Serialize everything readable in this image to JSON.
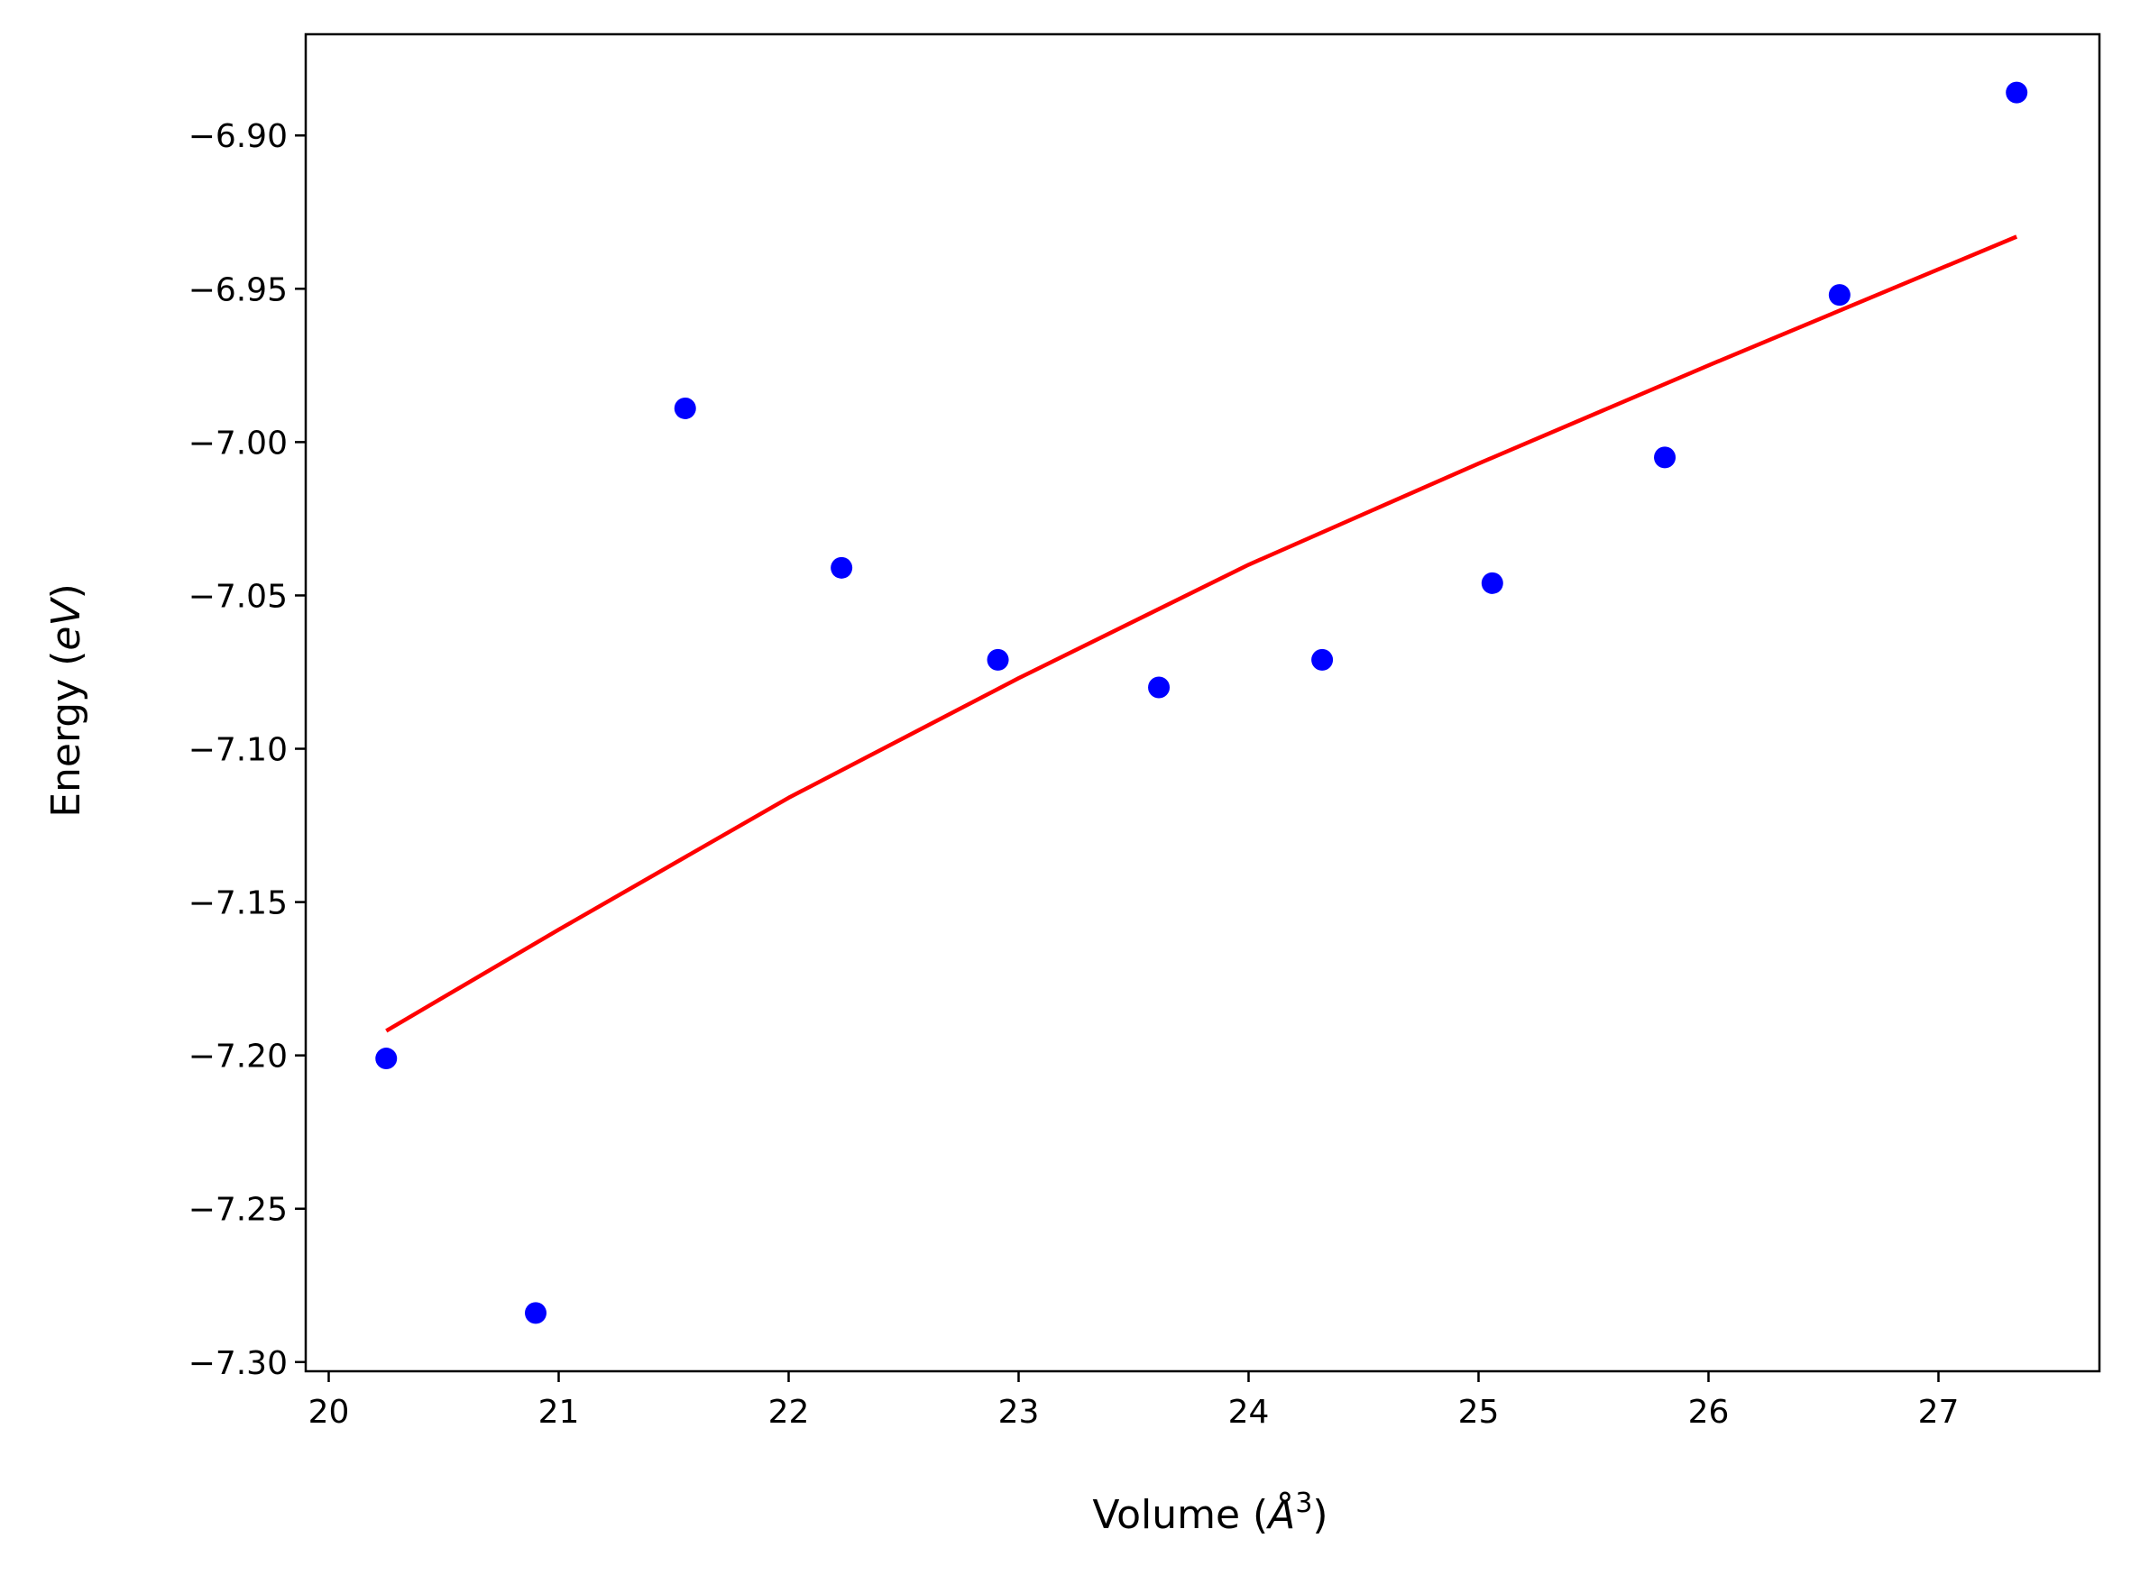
{
  "chart_data": {
    "type": "scatter",
    "xlabel": "Volume",
    "xlabel_unit_base": "Å",
    "xlabel_unit_exp": "3",
    "ylabel": "Energy",
    "ylabel_unit": "eV",
    "xlim": [
      19.9,
      27.7
    ],
    "ylim": [
      -7.303,
      -6.867
    ],
    "xticks": [
      20,
      21,
      22,
      23,
      24,
      25,
      26,
      27
    ],
    "xtick_labels": [
      "20",
      "21",
      "22",
      "23",
      "24",
      "25",
      "26",
      "27"
    ],
    "yticks": [
      -7.3,
      -7.25,
      -7.2,
      -7.15,
      -7.1,
      -7.05,
      -7.0,
      -6.95,
      -6.9
    ],
    "ytick_labels": [
      "−7.30",
      "−7.25",
      "−7.20",
      "−7.15",
      "−7.10",
      "−7.05",
      "−7.00",
      "−6.95",
      "−6.90"
    ],
    "grid": false,
    "series": [
      {
        "type": "scatter",
        "color": "#0000ff",
        "x": [
          20.25,
          20.9,
          21.55,
          22.23,
          22.91,
          23.61,
          24.32,
          25.06,
          25.81,
          26.57,
          27.34
        ],
        "y": [
          -7.201,
          -7.284,
          -6.989,
          -7.041,
          -7.071,
          -7.08,
          -7.071,
          -7.046,
          -7.005,
          -6.952,
          -6.886
        ]
      },
      {
        "type": "line",
        "color": "#ff0000",
        "x": [
          20.25,
          21.0,
          22.0,
          23.0,
          24.0,
          25.0,
          26.0,
          27.34
        ],
        "y": [
          -7.192,
          -7.159,
          -7.116,
          -7.077,
          -7.04,
          -7.007,
          -6.975,
          -6.933
        ]
      }
    ]
  }
}
